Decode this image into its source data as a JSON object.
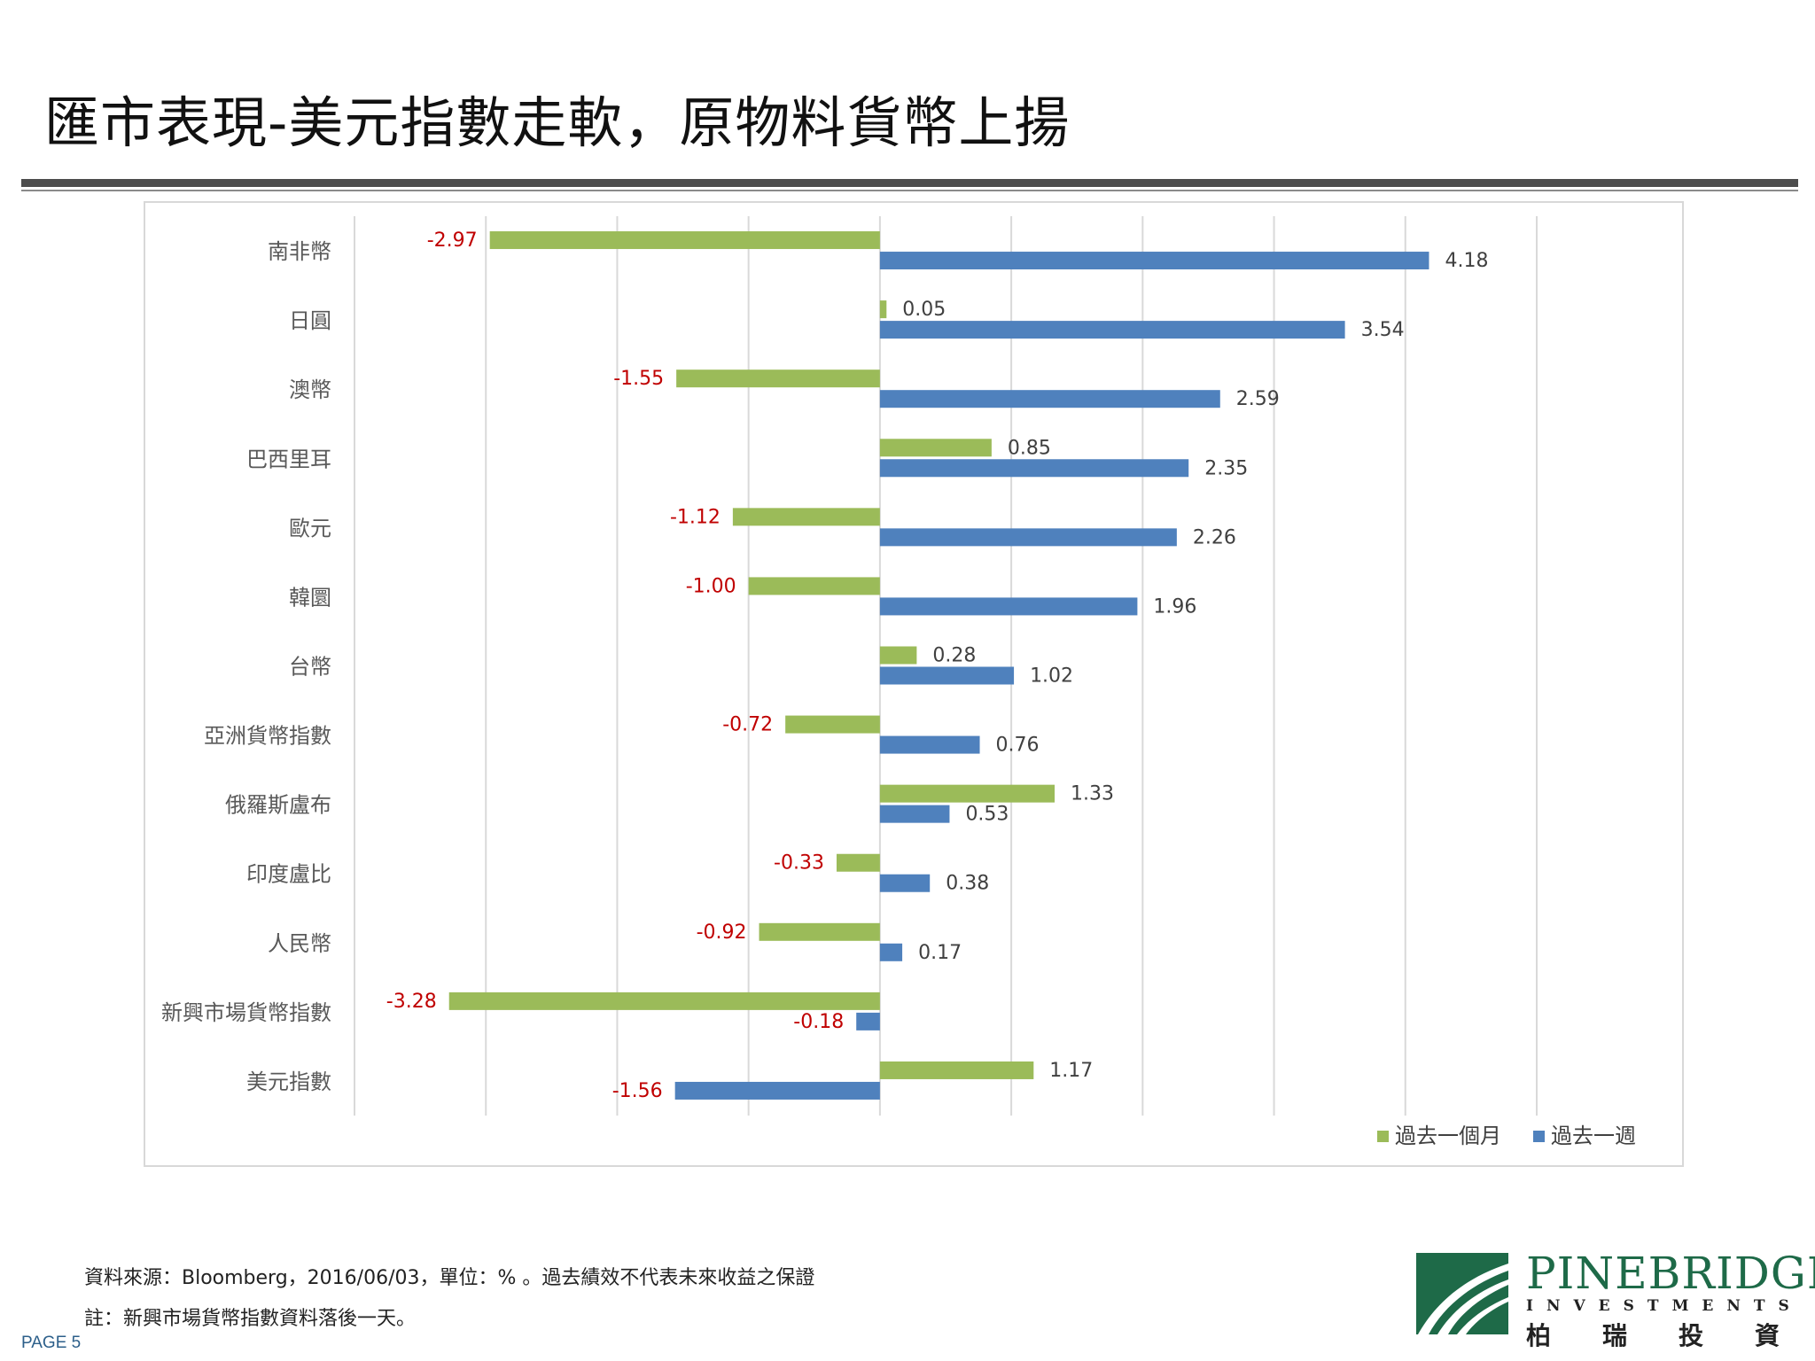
{
  "title": "匯市表現-美元指數走軟，原物料貨幣上揚",
  "colors": {
    "month": "#9bbb59",
    "week": "#4f81bd",
    "negative_label": "#c00000",
    "positive_label": "#404040",
    "grid": "#d9d9d9"
  },
  "chart_data": {
    "type": "bar",
    "orientation": "horizontal",
    "categories": [
      "南非幣",
      "日圓",
      "澳幣",
      "巴西里耳",
      "歐元",
      "韓圜",
      "台幣",
      "亞洲貨幣指數",
      "俄羅斯盧布",
      "印度盧比",
      "人民幣",
      "新興市場貨幣指數",
      "美元指數"
    ],
    "series": [
      {
        "name": "過去一個月",
        "values": [
          -2.97,
          0.05,
          -1.55,
          0.85,
          -1.12,
          -1.0,
          0.28,
          -0.72,
          1.33,
          -0.33,
          -0.92,
          -3.28,
          1.17
        ]
      },
      {
        "name": "過去一週",
        "values": [
          4.18,
          3.54,
          2.59,
          2.35,
          2.26,
          1.96,
          1.02,
          0.76,
          0.53,
          0.38,
          0.17,
          -0.18,
          -1.56
        ]
      }
    ],
    "xlim": [
      -4,
      5
    ],
    "grid": true,
    "legend": "bottom-right"
  },
  "footer": {
    "source": "資料來源：Bloomberg，2016/06/03，單位：% 。過去績效不代表未來收益之保證",
    "note": "註：新興市場貨幣指數資料落後一天。",
    "page": "PAGE 5"
  },
  "logo": {
    "name": "PINEBRIDGE",
    "sub": "INVESTMENTS",
    "cn": "柏瑞投資"
  }
}
